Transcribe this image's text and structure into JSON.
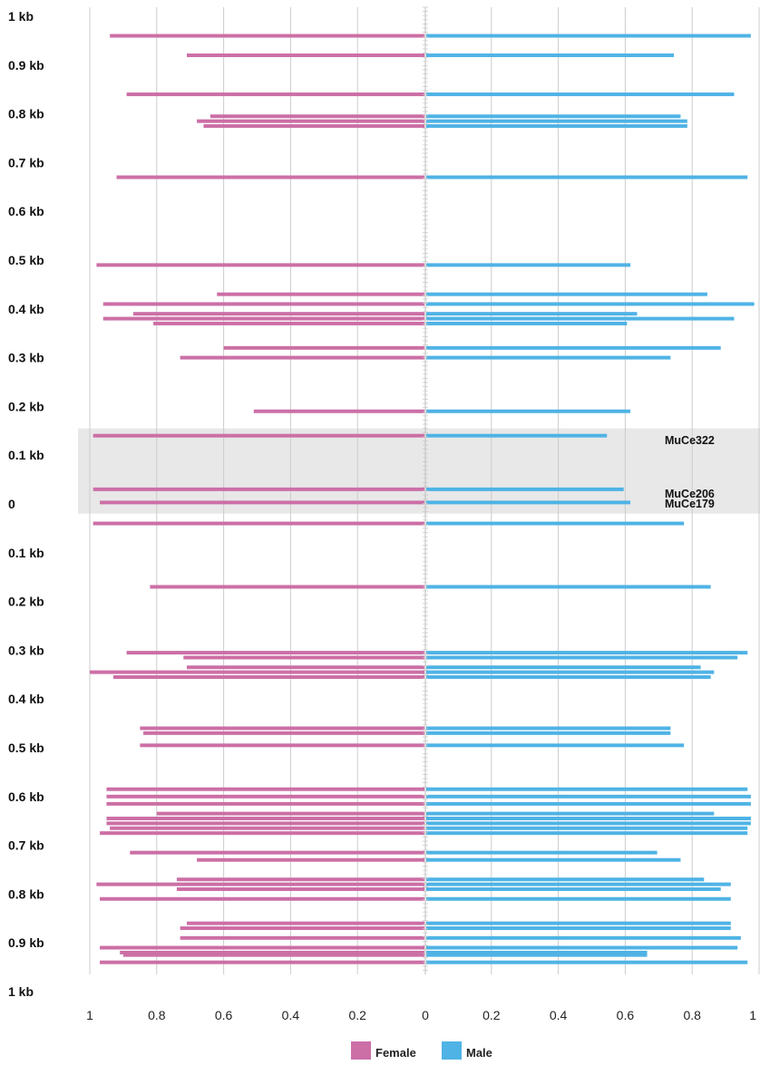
{
  "chart_data": {
    "type": "bar",
    "orientation": "horizontal",
    "layout": "mirrored",
    "grid": true,
    "legend_position": "bottom-center",
    "xlim": [
      1,
      0,
      1
    ],
    "x_tick_labels_left": [
      "1",
      "0.8",
      "0.6",
      "0.4",
      "0.2"
    ],
    "x_tick_label_center": "0",
    "x_tick_labels_right": [
      "0.2",
      "0.4",
      "0.6",
      "0.8",
      "1"
    ],
    "y_tick_labels": [
      "1 kb",
      "0.9 kb",
      "0.8 kb",
      "0.7 kb",
      "0.6 kb",
      "0.5 kb",
      "0.4 kb",
      "0.3 kb",
      "0.2 kb",
      "0.1 kb",
      "0",
      "0.1 kb",
      "0.2 kb",
      "0.3 kb",
      "0.4 kb",
      "0.5 kb",
      "0.6 kb",
      "0.7 kb",
      "0.8 kb",
      "0.9 kb",
      "1 kb"
    ],
    "highlight_region": {
      "from_kb": -0.155,
      "to_kb": 0.02
    },
    "markers": [
      {
        "label": "MuCe322",
        "position_kb": -0.13
      },
      {
        "label": "MuCe206",
        "position_kb": -0.02
      },
      {
        "label": "MuCe179",
        "position_kb": 0.0
      }
    ],
    "series": [
      {
        "name": "Female",
        "color": "#cc6fa6"
      },
      {
        "name": "Male",
        "color": "#4fb3e5"
      }
    ],
    "bars": [
      {
        "position_kb": -0.96,
        "female": 0.94,
        "male": 0.97
      },
      {
        "position_kb": -0.92,
        "female": 0.71,
        "male": 0.74
      },
      {
        "position_kb": -0.84,
        "female": 0.89,
        "male": 0.92
      },
      {
        "position_kb": -0.795,
        "female": 0.64,
        "male": 0.76
      },
      {
        "position_kb": -0.785,
        "female": 0.68,
        "male": 0.78
      },
      {
        "position_kb": -0.775,
        "female": 0.66,
        "male": 0.78
      },
      {
        "position_kb": -0.67,
        "female": 0.92,
        "male": 0.96
      },
      {
        "position_kb": -0.49,
        "female": 0.98,
        "male": 0.61
      },
      {
        "position_kb": -0.43,
        "female": 0.62,
        "male": 0.84
      },
      {
        "position_kb": -0.41,
        "female": 0.96,
        "male": 0.98
      },
      {
        "position_kb": -0.39,
        "female": 0.87,
        "male": 0.63
      },
      {
        "position_kb": -0.38,
        "female": 0.96,
        "male": 0.92
      },
      {
        "position_kb": -0.37,
        "female": 0.81,
        "male": 0.6
      },
      {
        "position_kb": -0.32,
        "female": 0.6,
        "male": 0.88
      },
      {
        "position_kb": -0.3,
        "female": 0.73,
        "male": 0.73
      },
      {
        "position_kb": -0.19,
        "female": 0.51,
        "male": 0.61
      },
      {
        "position_kb": -0.14,
        "female": 0.99,
        "male": 0.54
      },
      {
        "position_kb": -0.03,
        "female": 0.99,
        "male": 0.59
      },
      {
        "position_kb": -0.003,
        "female": 0.97,
        "male": 0.61
      },
      {
        "position_kb": 0.04,
        "female": 0.99,
        "male": 0.77
      },
      {
        "position_kb": 0.17,
        "female": 0.82,
        "male": 0.85
      },
      {
        "position_kb": 0.305,
        "female": 0.89,
        "male": 0.96
      },
      {
        "position_kb": 0.315,
        "female": 0.72,
        "male": 0.93
      },
      {
        "position_kb": 0.335,
        "female": 0.71,
        "male": 0.82
      },
      {
        "position_kb": 0.345,
        "female": 1.0,
        "male": 0.86
      },
      {
        "position_kb": 0.355,
        "female": 0.93,
        "male": 0.85
      },
      {
        "position_kb": 0.46,
        "female": 0.85,
        "male": 0.73
      },
      {
        "position_kb": 0.47,
        "female": 0.84,
        "male": 0.73
      },
      {
        "position_kb": 0.495,
        "female": 0.85,
        "male": 0.77
      },
      {
        "position_kb": 0.585,
        "female": 0.95,
        "male": 0.96
      },
      {
        "position_kb": 0.6,
        "female": 0.95,
        "male": 0.97
      },
      {
        "position_kb": 0.615,
        "female": 0.95,
        "male": 0.97
      },
      {
        "position_kb": 0.635,
        "female": 0.8,
        "male": 0.86
      },
      {
        "position_kb": 0.645,
        "female": 0.95,
        "male": 0.97
      },
      {
        "position_kb": 0.655,
        "female": 0.95,
        "male": 0.97
      },
      {
        "position_kb": 0.665,
        "female": 0.94,
        "male": 0.96
      },
      {
        "position_kb": 0.675,
        "female": 0.97,
        "male": 0.96
      },
      {
        "position_kb": 0.715,
        "female": 0.88,
        "male": 0.69
      },
      {
        "position_kb": 0.73,
        "female": 0.68,
        "male": 0.76
      },
      {
        "position_kb": 0.77,
        "female": 0.74,
        "male": 0.83
      },
      {
        "position_kb": 0.78,
        "female": 0.98,
        "male": 0.91
      },
      {
        "position_kb": 0.79,
        "female": 0.74,
        "male": 0.88
      },
      {
        "position_kb": 0.81,
        "female": 0.97,
        "male": 0.91
      },
      {
        "position_kb": 0.86,
        "female": 0.71,
        "male": 0.91
      },
      {
        "position_kb": 0.87,
        "female": 0.73,
        "male": 0.91
      },
      {
        "position_kb": 0.89,
        "female": 0.73,
        "male": 0.94
      },
      {
        "position_kb": 0.91,
        "female": 0.97,
        "male": 0.93
      },
      {
        "position_kb": 0.92,
        "female": 0.91,
        "male": 0.66
      },
      {
        "position_kb": 0.925,
        "female": 0.9,
        "male": 0.66
      },
      {
        "position_kb": 0.94,
        "female": 0.97,
        "male": 0.96
      }
    ]
  }
}
